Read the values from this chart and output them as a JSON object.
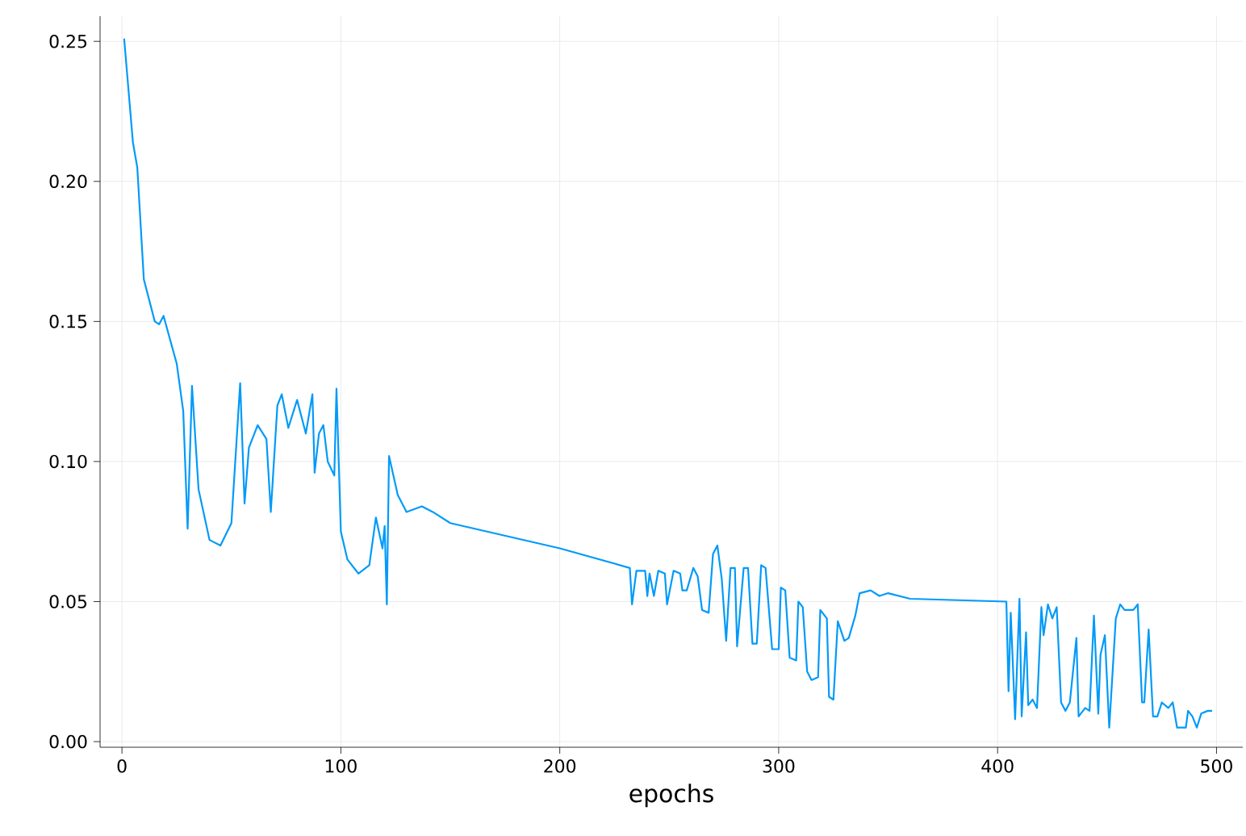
{
  "chart_data": {
    "type": "line",
    "xlabel": "epochs",
    "xlim": [
      -10,
      512
    ],
    "ylim": [
      -0.002,
      0.259
    ],
    "xticks": [
      0,
      100,
      200,
      300,
      400,
      500
    ],
    "yticks": [
      {
        "value": 0,
        "label": "0.00"
      },
      {
        "value": 0.05,
        "label": "0.05"
      },
      {
        "value": 0.1,
        "label": "0.10"
      },
      {
        "value": 0.15,
        "label": "0.15"
      },
      {
        "value": 0.2,
        "label": "0.20"
      },
      {
        "value": 0.25,
        "label": "0.25"
      }
    ],
    "grid": true,
    "series": [
      {
        "color": "#009af9",
        "x": [
          1,
          5,
          7,
          10,
          15,
          17,
          19,
          25,
          28,
          30,
          32,
          35,
          40,
          45,
          50,
          54,
          56,
          58,
          62,
          66,
          68,
          71,
          73,
          76,
          80,
          84,
          87,
          88,
          90,
          92,
          94,
          97,
          98,
          100,
          103,
          108,
          113,
          116,
          119,
          120,
          121,
          122,
          126,
          130,
          137,
          142,
          150,
          200,
          232,
          233,
          235,
          239,
          240,
          241,
          243,
          245,
          248,
          249,
          252,
          255,
          256,
          258,
          261,
          263,
          265,
          268,
          270,
          272,
          274,
          276,
          278,
          280,
          281,
          284,
          286,
          288,
          290,
          292,
          294,
          297,
          300,
          301,
          303,
          305,
          308,
          309,
          311,
          313,
          315,
          318,
          319,
          322,
          323,
          325,
          327,
          330,
          332,
          335,
          337,
          342,
          346,
          350,
          360,
          404,
          405,
          406,
          408,
          410,
          411,
          413,
          414,
          416,
          418,
          420,
          421,
          423,
          425,
          427,
          429,
          431,
          433,
          436,
          437,
          440,
          442,
          444,
          446,
          447,
          449,
          451,
          454,
          456,
          458,
          462,
          464,
          466,
          467,
          469,
          471,
          473,
          475,
          478,
          480,
          482,
          486,
          487,
          489,
          491,
          493,
          496,
          498
        ],
        "values": [
          0.251,
          0.214,
          0.205,
          0.165,
          0.15,
          0.149,
          0.152,
          0.135,
          0.118,
          0.076,
          0.127,
          0.09,
          0.072,
          0.07,
          0.078,
          0.128,
          0.085,
          0.105,
          0.113,
          0.108,
          0.082,
          0.12,
          0.124,
          0.112,
          0.122,
          0.11,
          0.124,
          0.096,
          0.11,
          0.113,
          0.1,
          0.095,
          0.126,
          0.075,
          0.065,
          0.06,
          0.063,
          0.08,
          0.069,
          0.077,
          0.049,
          0.102,
          0.088,
          0.082,
          0.084,
          0.082,
          0.078,
          0.069,
          0.062,
          0.049,
          0.061,
          0.061,
          0.052,
          0.06,
          0.052,
          0.061,
          0.06,
          0.049,
          0.061,
          0.06,
          0.054,
          0.054,
          0.062,
          0.059,
          0.047,
          0.046,
          0.067,
          0.07,
          0.058,
          0.036,
          0.062,
          0.062,
          0.034,
          0.062,
          0.062,
          0.035,
          0.035,
          0.063,
          0.062,
          0.033,
          0.033,
          0.055,
          0.054,
          0.03,
          0.029,
          0.05,
          0.048,
          0.025,
          0.022,
          0.023,
          0.047,
          0.044,
          0.016,
          0.015,
          0.043,
          0.036,
          0.037,
          0.045,
          0.053,
          0.054,
          0.052,
          0.053,
          0.051,
          0.05,
          0.018,
          0.046,
          0.008,
          0.051,
          0.009,
          0.039,
          0.013,
          0.015,
          0.012,
          0.048,
          0.038,
          0.049,
          0.044,
          0.048,
          0.014,
          0.011,
          0.014,
          0.037,
          0.009,
          0.012,
          0.011,
          0.045,
          0.01,
          0.031,
          0.038,
          0.005,
          0.044,
          0.049,
          0.047,
          0.047,
          0.049,
          0.014,
          0.014,
          0.04,
          0.009,
          0.009,
          0.014,
          0.012,
          0.014,
          0.005,
          0.005,
          0.011,
          0.009,
          0.005,
          0.01,
          0.011,
          0.011
        ]
      }
    ]
  }
}
